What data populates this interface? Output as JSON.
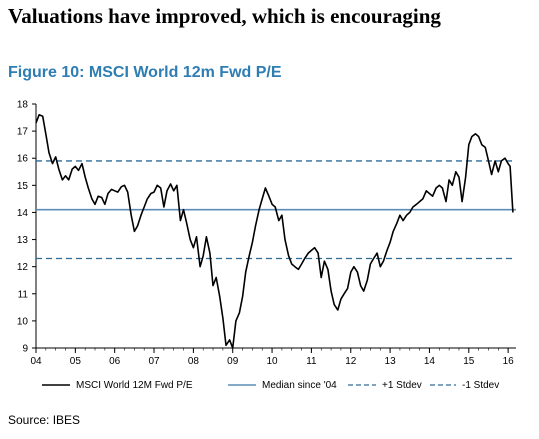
{
  "headline": "Valuations have improved, which is encouraging",
  "figure_title": "Figure 10: MSCI World 12m Fwd P/E",
  "source": "Source: IBES",
  "colors": {
    "series": "#000000",
    "median": "#5b8db8",
    "stdev": "#2e6b99",
    "title": "#2e7db3"
  },
  "chart_data": {
    "type": "line",
    "ylim": [
      9,
      18
    ],
    "yticks": [
      9,
      10,
      11,
      12,
      13,
      14,
      15,
      16,
      17,
      18
    ],
    "xlim": [
      2004,
      2016.2
    ],
    "xticks": [
      {
        "value": 2004,
        "label": "04"
      },
      {
        "value": 2005,
        "label": "05"
      },
      {
        "value": 2006,
        "label": "06"
      },
      {
        "value": 2007,
        "label": "07"
      },
      {
        "value": 2008,
        "label": "08"
      },
      {
        "value": 2009,
        "label": "09"
      },
      {
        "value": 2010,
        "label": "10"
      },
      {
        "value": 2011,
        "label": "11"
      },
      {
        "value": 2012,
        "label": "12"
      },
      {
        "value": 2013,
        "label": "13"
      },
      {
        "value": 2014,
        "label": "14"
      },
      {
        "value": 2015,
        "label": "15"
      },
      {
        "value": 2016,
        "label": "16"
      }
    ],
    "series": [
      {
        "name": "MSCI World 12M Fwd P/E",
        "points": [
          [
            2004.0,
            17.3
          ],
          [
            2004.08,
            17.6
          ],
          [
            2004.17,
            17.55
          ],
          [
            2004.25,
            16.9
          ],
          [
            2004.33,
            16.2
          ],
          [
            2004.42,
            15.8
          ],
          [
            2004.5,
            16.05
          ],
          [
            2004.58,
            15.6
          ],
          [
            2004.67,
            15.2
          ],
          [
            2004.75,
            15.35
          ],
          [
            2004.83,
            15.2
          ],
          [
            2004.92,
            15.6
          ],
          [
            2005.0,
            15.7
          ],
          [
            2005.08,
            15.55
          ],
          [
            2005.17,
            15.8
          ],
          [
            2005.25,
            15.3
          ],
          [
            2005.33,
            14.9
          ],
          [
            2005.42,
            14.5
          ],
          [
            2005.5,
            14.3
          ],
          [
            2005.58,
            14.6
          ],
          [
            2005.67,
            14.55
          ],
          [
            2005.75,
            14.3
          ],
          [
            2005.83,
            14.7
          ],
          [
            2005.92,
            14.85
          ],
          [
            2006.0,
            14.8
          ],
          [
            2006.08,
            14.75
          ],
          [
            2006.17,
            14.95
          ],
          [
            2006.25,
            15.0
          ],
          [
            2006.33,
            14.75
          ],
          [
            2006.42,
            13.9
          ],
          [
            2006.5,
            13.3
          ],
          [
            2006.58,
            13.5
          ],
          [
            2006.67,
            13.9
          ],
          [
            2006.75,
            14.2
          ],
          [
            2006.83,
            14.5
          ],
          [
            2006.92,
            14.7
          ],
          [
            2007.0,
            14.75
          ],
          [
            2007.08,
            15.0
          ],
          [
            2007.17,
            14.9
          ],
          [
            2007.25,
            14.2
          ],
          [
            2007.33,
            14.8
          ],
          [
            2007.42,
            15.05
          ],
          [
            2007.5,
            14.8
          ],
          [
            2007.58,
            15.0
          ],
          [
            2007.67,
            13.7
          ],
          [
            2007.75,
            14.1
          ],
          [
            2007.83,
            13.6
          ],
          [
            2007.92,
            13.0
          ],
          [
            2008.0,
            12.7
          ],
          [
            2008.08,
            13.1
          ],
          [
            2008.17,
            12.0
          ],
          [
            2008.25,
            12.4
          ],
          [
            2008.33,
            13.1
          ],
          [
            2008.42,
            12.5
          ],
          [
            2008.5,
            11.3
          ],
          [
            2008.58,
            11.6
          ],
          [
            2008.67,
            10.9
          ],
          [
            2008.75,
            10.1
          ],
          [
            2008.83,
            9.1
          ],
          [
            2008.92,
            9.3
          ],
          [
            2009.0,
            9.0
          ],
          [
            2009.08,
            10.0
          ],
          [
            2009.17,
            10.3
          ],
          [
            2009.25,
            10.9
          ],
          [
            2009.33,
            11.8
          ],
          [
            2009.42,
            12.4
          ],
          [
            2009.5,
            12.9
          ],
          [
            2009.58,
            13.5
          ],
          [
            2009.67,
            14.1
          ],
          [
            2009.75,
            14.5
          ],
          [
            2009.83,
            14.9
          ],
          [
            2009.92,
            14.6
          ],
          [
            2010.0,
            14.3
          ],
          [
            2010.08,
            14.2
          ],
          [
            2010.17,
            13.7
          ],
          [
            2010.25,
            13.9
          ],
          [
            2010.33,
            13.0
          ],
          [
            2010.42,
            12.4
          ],
          [
            2010.5,
            12.1
          ],
          [
            2010.58,
            12.0
          ],
          [
            2010.67,
            11.9
          ],
          [
            2010.75,
            12.1
          ],
          [
            2010.83,
            12.3
          ],
          [
            2010.92,
            12.5
          ],
          [
            2011.0,
            12.6
          ],
          [
            2011.08,
            12.7
          ],
          [
            2011.17,
            12.5
          ],
          [
            2011.25,
            11.6
          ],
          [
            2011.33,
            12.2
          ],
          [
            2011.42,
            11.9
          ],
          [
            2011.5,
            11.1
          ],
          [
            2011.58,
            10.6
          ],
          [
            2011.67,
            10.4
          ],
          [
            2011.75,
            10.8
          ],
          [
            2011.83,
            11.0
          ],
          [
            2011.92,
            11.2
          ],
          [
            2012.0,
            11.8
          ],
          [
            2012.08,
            12.0
          ],
          [
            2012.17,
            11.8
          ],
          [
            2012.25,
            11.3
          ],
          [
            2012.33,
            11.1
          ],
          [
            2012.42,
            11.5
          ],
          [
            2012.5,
            12.1
          ],
          [
            2012.58,
            12.3
          ],
          [
            2012.67,
            12.5
          ],
          [
            2012.75,
            12.0
          ],
          [
            2012.83,
            12.2
          ],
          [
            2012.92,
            12.6
          ],
          [
            2013.0,
            12.9
          ],
          [
            2013.08,
            13.3
          ],
          [
            2013.17,
            13.6
          ],
          [
            2013.25,
            13.9
          ],
          [
            2013.33,
            13.7
          ],
          [
            2013.42,
            13.9
          ],
          [
            2013.5,
            14.0
          ],
          [
            2013.58,
            14.2
          ],
          [
            2013.67,
            14.3
          ],
          [
            2013.75,
            14.4
          ],
          [
            2013.83,
            14.5
          ],
          [
            2013.92,
            14.8
          ],
          [
            2014.0,
            14.7
          ],
          [
            2014.08,
            14.6
          ],
          [
            2014.17,
            14.9
          ],
          [
            2014.25,
            15.0
          ],
          [
            2014.33,
            14.9
          ],
          [
            2014.42,
            14.4
          ],
          [
            2014.5,
            15.2
          ],
          [
            2014.58,
            15.0
          ],
          [
            2014.67,
            15.5
          ],
          [
            2014.75,
            15.3
          ],
          [
            2014.83,
            14.4
          ],
          [
            2014.92,
            15.3
          ],
          [
            2015.0,
            16.5
          ],
          [
            2015.08,
            16.8
          ],
          [
            2015.17,
            16.9
          ],
          [
            2015.25,
            16.8
          ],
          [
            2015.33,
            16.5
          ],
          [
            2015.42,
            16.4
          ],
          [
            2015.5,
            15.9
          ],
          [
            2015.58,
            15.4
          ],
          [
            2015.67,
            15.9
          ],
          [
            2015.75,
            15.5
          ],
          [
            2015.83,
            15.9
          ],
          [
            2015.92,
            16.0
          ],
          [
            2016.0,
            15.8
          ],
          [
            2016.05,
            15.7
          ],
          [
            2016.12,
            14.0
          ]
        ]
      },
      {
        "name": "Median since '04",
        "value": 14.1
      },
      {
        "name": "+1 Stdev",
        "value": 15.9
      },
      {
        "name": "-1 Stdev",
        "value": 12.3
      }
    ],
    "legend": [
      "MSCI World 12M Fwd P/E",
      "Median since '04",
      "+1 Stdev",
      "-1 Stdev"
    ]
  }
}
